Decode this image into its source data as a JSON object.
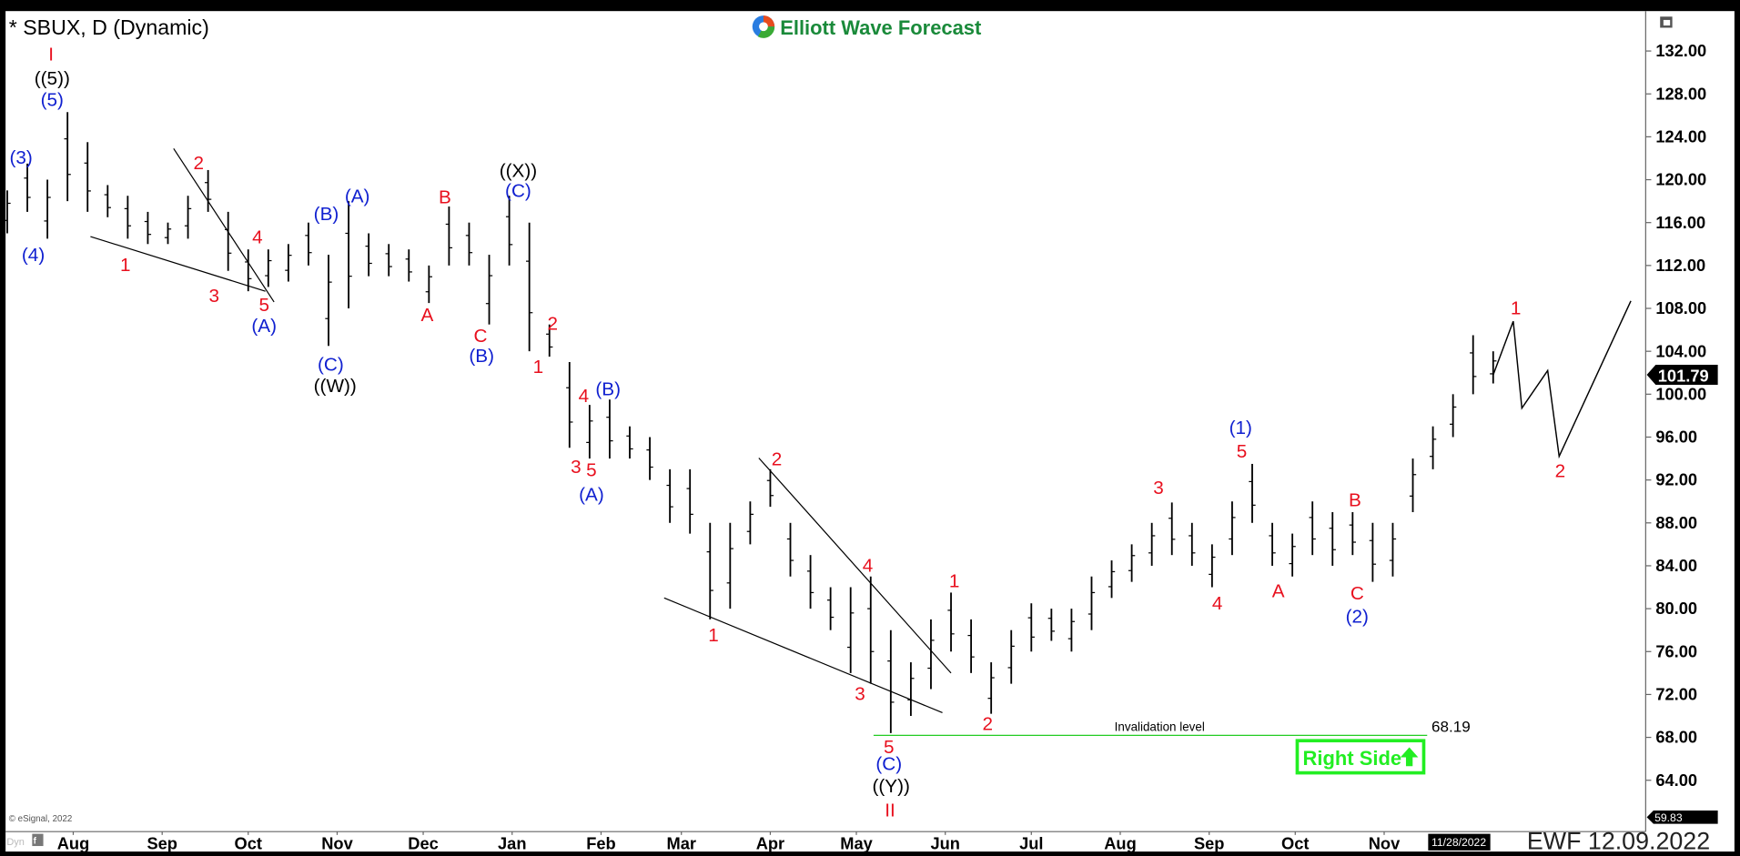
{
  "header": {
    "symbol_title": "* SBUX, D (Dynamic)",
    "brand": "Elliott Wave Forecast",
    "footer_stamp": "EWF 12.09.2022",
    "copyright": "© eSignal, 2022",
    "dyn_label": "Dyn",
    "cursor_date": "11/28/2022",
    "last_price_tag": "101.79",
    "low_price_tag": "59.83"
  },
  "colors": {
    "bars": "#000000",
    "wave_red": "#e8101e",
    "wave_blue": "#1020d0",
    "wave_black": "#000000",
    "invalidation": "#22cc22",
    "right_side": "#22ee22",
    "brand": "#1a8a3a"
  },
  "annotations": {
    "invalidation_label": "Invalidation level",
    "invalidation_price": "68.19",
    "right_side_label": "Right Side",
    "right_side_icon": "arrow-up-icon"
  },
  "chart_data": {
    "type": "ohlc",
    "title": "* SBUX, D (Dynamic)",
    "ylim": [
      59.83,
      136
    ],
    "y_ticks": [
      "132.00",
      "128.00",
      "124.00",
      "120.00",
      "116.00",
      "112.00",
      "108.00",
      "104.00",
      "100.00",
      "96.00",
      "92.00",
      "88.00",
      "84.00",
      "80.00",
      "76.00",
      "72.00",
      "68.00",
      "64.00"
    ],
    "x_ticks": [
      {
        "label": "Aug",
        "date": "2021-08-01"
      },
      {
        "label": "Sep",
        "date": "2021-09-01"
      },
      {
        "label": "Oct",
        "date": "2021-10-01"
      },
      {
        "label": "Nov",
        "date": "2021-11-01"
      },
      {
        "label": "Dec",
        "date": "2021-12-01"
      },
      {
        "label": "Jan",
        "date": "2022-01-01"
      },
      {
        "label": "Feb",
        "date": "2022-02-01"
      },
      {
        "label": "Mar",
        "date": "2022-03-01"
      },
      {
        "label": "Apr",
        "date": "2022-04-01"
      },
      {
        "label": "May",
        "date": "2022-05-01"
      },
      {
        "label": "Jun",
        "date": "2022-06-01"
      },
      {
        "label": "Jul",
        "date": "2022-07-01"
      },
      {
        "label": "Aug",
        "date": "2022-08-01"
      },
      {
        "label": "Sep",
        "date": "2022-09-01"
      },
      {
        "label": "Oct",
        "date": "2022-10-01"
      },
      {
        "label": "Nov",
        "date": "2022-11-01"
      }
    ],
    "bars_high_low": [
      [
        "2021-07-09",
        119,
        115
      ],
      [
        "2021-07-16",
        121.5,
        117
      ],
      [
        "2021-07-23",
        120,
        114.5
      ],
      [
        "2021-07-30",
        126.3,
        118
      ],
      [
        "2021-08-06",
        123.5,
        117
      ],
      [
        "2021-08-13",
        119.5,
        116.5
      ],
      [
        "2021-08-20",
        118.5,
        114.5
      ],
      [
        "2021-08-27",
        117,
        114
      ],
      [
        "2021-09-03",
        116,
        114
      ],
      [
        "2021-09-10",
        118.5,
        114.5
      ],
      [
        "2021-09-17",
        120.9,
        117
      ],
      [
        "2021-09-24",
        117,
        111.5
      ],
      [
        "2021-10-01",
        113.5,
        109.6
      ],
      [
        "2021-10-08",
        113.5,
        110
      ],
      [
        "2021-10-15",
        114,
        110.5
      ],
      [
        "2021-10-22",
        116,
        112
      ],
      [
        "2021-10-29",
        113,
        104.5
      ],
      [
        "2021-11-05",
        118,
        108
      ],
      [
        "2021-11-12",
        115,
        111
      ],
      [
        "2021-11-19",
        114,
        111
      ],
      [
        "2021-11-26",
        113.5,
        110.5
      ],
      [
        "2021-12-03",
        112,
        108.5
      ],
      [
        "2021-12-10",
        117.5,
        112
      ],
      [
        "2021-12-17",
        116,
        112
      ],
      [
        "2021-12-24",
        113,
        106.5
      ],
      [
        "2021-12-31",
        118.5,
        112
      ],
      [
        "2022-01-07",
        116,
        104
      ],
      [
        "2022-01-14",
        106.5,
        103.5
      ],
      [
        "2022-01-21",
        103,
        95
      ],
      [
        "2022-01-28",
        99,
        94
      ],
      [
        "2022-02-04",
        99.5,
        94
      ],
      [
        "2022-02-11",
        97,
        94
      ],
      [
        "2022-02-18",
        96,
        92
      ],
      [
        "2022-02-25",
        93,
        88
      ],
      [
        "2022-03-04",
        93,
        87
      ],
      [
        "2022-03-11",
        88,
        79
      ],
      [
        "2022-03-18",
        88,
        80
      ],
      [
        "2022-03-25",
        90,
        86
      ],
      [
        "2022-04-01",
        93,
        89.5
      ],
      [
        "2022-04-08",
        88,
        83
      ],
      [
        "2022-04-15",
        85,
        80
      ],
      [
        "2022-04-22",
        82,
        78
      ],
      [
        "2022-04-29",
        82,
        74
      ],
      [
        "2022-05-06",
        83,
        73
      ],
      [
        "2022-05-13",
        78,
        68.4
      ],
      [
        "2022-05-20",
        75,
        70
      ],
      [
        "2022-05-27",
        79,
        72.5
      ],
      [
        "2022-06-03",
        81.5,
        76
      ],
      [
        "2022-06-10",
        79,
        74
      ],
      [
        "2022-06-17",
        75,
        70.2
      ],
      [
        "2022-06-24",
        78,
        73
      ],
      [
        "2022-07-01",
        80.5,
        76
      ],
      [
        "2022-07-08",
        80,
        77
      ],
      [
        "2022-07-15",
        80,
        76
      ],
      [
        "2022-07-22",
        83,
        78
      ],
      [
        "2022-07-29",
        84.5,
        81
      ],
      [
        "2022-08-05",
        86,
        82.5
      ],
      [
        "2022-08-12",
        88,
        84
      ],
      [
        "2022-08-19",
        89.9,
        85
      ],
      [
        "2022-08-26",
        88,
        84
      ],
      [
        "2022-09-02",
        86,
        82
      ],
      [
        "2022-09-09",
        90,
        85
      ],
      [
        "2022-09-16",
        93.5,
        88
      ],
      [
        "2022-09-23",
        88,
        84
      ],
      [
        "2022-09-30",
        87,
        83
      ],
      [
        "2022-10-07",
        90,
        85
      ],
      [
        "2022-10-14",
        89,
        84
      ],
      [
        "2022-10-21",
        89,
        85
      ],
      [
        "2022-10-28",
        88,
        82.5
      ],
      [
        "2022-11-04",
        88,
        83
      ],
      [
        "2022-11-11",
        94,
        89
      ],
      [
        "2022-11-18",
        97,
        93
      ],
      [
        "2022-11-25",
        100,
        96
      ],
      [
        "2022-12-02",
        105.5,
        100
      ],
      [
        "2022-12-09",
        104,
        101
      ]
    ],
    "projection_path": [
      [
        "2022-12-09",
        101.8
      ],
      [
        "2022-12-16",
        106.8
      ],
      [
        "2022-12-19",
        98.7
      ],
      [
        "2022-12-28",
        102.2
      ],
      [
        "2023-01-01",
        94.2
      ],
      [
        "2023-01-26",
        108.7
      ]
    ],
    "trendlines": [
      [
        [
          "2021-08-07",
          114.7
        ],
        [
          "2021-10-07",
          109.6
        ]
      ],
      [
        [
          "2021-09-05",
          122.9
        ],
        [
          "2021-10-10",
          108.6
        ]
      ],
      [
        [
          "2022-02-23",
          81.0
        ],
        [
          "2022-05-31",
          70.3
        ]
      ],
      [
        [
          "2022-03-28",
          94.05
        ],
        [
          "2022-06-03",
          74.0
        ]
      ]
    ],
    "invalidation_level": {
      "price": 68.19,
      "from": "2022-05-07",
      "to": "2022-11-16"
    },
    "wave_labels": [
      {
        "text": "I",
        "color": "red"
      },
      {
        "text": "((5))",
        "color": "black"
      },
      {
        "text": "(5)",
        "color": "blue"
      },
      {
        "text": "(3)",
        "color": "blue"
      },
      {
        "text": "(4)",
        "color": "blue"
      },
      {
        "text": "1",
        "color": "red"
      },
      {
        "text": "2",
        "color": "red"
      },
      {
        "text": "3",
        "color": "red"
      },
      {
        "text": "4",
        "color": "red"
      },
      {
        "text": "5",
        "color": "red"
      },
      {
        "text": "(A)",
        "color": "blue"
      },
      {
        "text": "(B)",
        "color": "blue"
      },
      {
        "text": "(A)",
        "color": "blue"
      },
      {
        "text": "(C)",
        "color": "blue"
      },
      {
        "text": "((W))",
        "color": "black"
      },
      {
        "text": "B",
        "color": "red"
      },
      {
        "text": "A",
        "color": "red"
      },
      {
        "text": "C",
        "color": "red"
      },
      {
        "text": "(B)",
        "color": "blue"
      },
      {
        "text": "((X))",
        "color": "black"
      },
      {
        "text": "(C)",
        "color": "blue"
      },
      {
        "text": "2",
        "color": "red"
      },
      {
        "text": "1",
        "color": "red"
      },
      {
        "text": "4",
        "color": "red"
      },
      {
        "text": "(B)",
        "color": "blue"
      },
      {
        "text": "3",
        "color": "red"
      },
      {
        "text": "5",
        "color": "red"
      },
      {
        "text": "(A)",
        "color": "blue"
      },
      {
        "text": "2",
        "color": "red"
      },
      {
        "text": "1",
        "color": "red"
      },
      {
        "text": "4",
        "color": "red"
      },
      {
        "text": "3",
        "color": "red"
      },
      {
        "text": "5",
        "color": "red"
      },
      {
        "text": "(C)",
        "color": "blue"
      },
      {
        "text": "((Y))",
        "color": "black"
      },
      {
        "text": "II",
        "color": "red"
      },
      {
        "text": "1",
        "color": "red"
      },
      {
        "text": "2",
        "color": "red"
      },
      {
        "text": "3",
        "color": "red"
      },
      {
        "text": "4",
        "color": "red"
      },
      {
        "text": "(1)",
        "color": "blue"
      },
      {
        "text": "5",
        "color": "red"
      },
      {
        "text": "A",
        "color": "red"
      },
      {
        "text": "B",
        "color": "red"
      },
      {
        "text": "C",
        "color": "red"
      },
      {
        "text": "(2)",
        "color": "blue"
      },
      {
        "text": "1",
        "color": "red"
      },
      {
        "text": "2",
        "color": "red"
      }
    ]
  }
}
